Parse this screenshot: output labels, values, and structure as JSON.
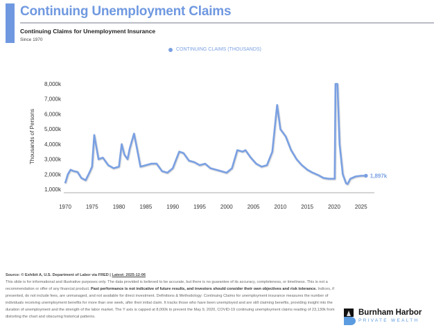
{
  "header": {
    "title": "Continuing Unemployment Claims",
    "subtitle": "Continuing Claims for Unemployment Insurance",
    "since": "Since 1970"
  },
  "chart_data": {
    "type": "line",
    "title": "Continuing Claims for Unemployment Insurance",
    "xlabel": "",
    "ylabel": "Thousands of Persons",
    "legend": [
      "CONTINUING CLAIMS (THOUSANDS)"
    ],
    "legend_placement": "top-center",
    "ylim": [
      1000,
      8000
    ],
    "xlim": [
      1970,
      2026
    ],
    "grid": false,
    "color": "#7aa0e2",
    "x_ticks": [
      "1970",
      "1975",
      "1980",
      "1985",
      "1990",
      "1995",
      "2000",
      "2005",
      "2010",
      "2015",
      "2020",
      "2025"
    ],
    "y_ticks": [
      "1,000k",
      "2,000k",
      "3,000k",
      "4,000k",
      "5,000k",
      "6,000k",
      "7,000k",
      "8,000k"
    ],
    "last_value_label": "1,897k",
    "series": [
      {
        "name": "CONTINUING CLAIMS (THOUSANDS)",
        "x": [
          1970,
          1970.5,
          1971,
          1971.6,
          1972.3,
          1973,
          1973.8,
          1974.5,
          1975,
          1975.4,
          1975.8,
          1976.2,
          1977,
          1978,
          1979,
          1980,
          1980.5,
          1981,
          1981.6,
          1982,
          1982.8,
          1983.3,
          1984,
          1985,
          1986,
          1987,
          1988,
          1989,
          1990,
          1991.2,
          1992,
          1993,
          1994,
          1995,
          1996,
          1997,
          1998,
          1999,
          2000,
          2001,
          2002,
          2003,
          2003.5,
          2004.5,
          2005.5,
          2006.5,
          2007.5,
          2008.5,
          2009.4,
          2010,
          2011,
          2012,
          2013,
          2014,
          2015,
          2016,
          2017,
          2018,
          2019,
          2020.1,
          2020.25,
          2020.6,
          2021,
          2021.6,
          2022.2,
          2022.5,
          2023,
          2024,
          2025,
          2025.9
        ],
        "y": [
          1400,
          2000,
          2300,
          2200,
          2150,
          1750,
          1600,
          2100,
          2500,
          4600,
          3800,
          3000,
          3100,
          2600,
          2400,
          2500,
          4000,
          3300,
          3000,
          3700,
          4700,
          3800,
          2500,
          2600,
          2700,
          2700,
          2200,
          2100,
          2400,
          3500,
          3400,
          2900,
          2800,
          2600,
          2700,
          2400,
          2300,
          2200,
          2100,
          2400,
          3600,
          3500,
          3600,
          3100,
          2700,
          2500,
          2600,
          3500,
          6600,
          5000,
          4500,
          3600,
          3000,
          2600,
          2300,
          2100,
          1950,
          1750,
          1700,
          1700,
          8000,
          8000,
          4000,
          2000,
          1400,
          1350,
          1700,
          1850,
          1900,
          1897
        ]
      }
    ]
  },
  "footer": {
    "source_label": "Source: © Exhibit A, U.S. Department of Labor via FRED | ",
    "latest": "Latest: 2025-12-06",
    "disclaimer_1": "This slide is for informational and illustrative purposes only. The data provided is believed to be accurate, but there is no guarantee of its accuracy, completeness, or timeliness. This is not a recommendation or offer of any financial product. ",
    "disclaimer_bold": "Past performance is not indicative of future results, and investors should consider their own objectives and risk tolerance.",
    "disclaimer_2": " Indices, if presented, do not include fees, are unmanaged, and not available for direct investment. Definitions & Methodology: Continuing Claims for unemployment insurance measures the number of individuals receiving unemployment benefits for more than one week, after their initial claim. It tracks those who have been unemployed and are still claiming benefits, providing insight into the duration of unemployment and the strength of the labor market. The Y axis is capped at 8,000k to prevent the May 9, 2020, COVID-19 continuing unemployment claims reading of 23,130k from distorting the chart and obscuring historical patterns."
  },
  "logo": {
    "name": "Burnham Harbor",
    "tagline": "PRIVATE WEALTH"
  }
}
